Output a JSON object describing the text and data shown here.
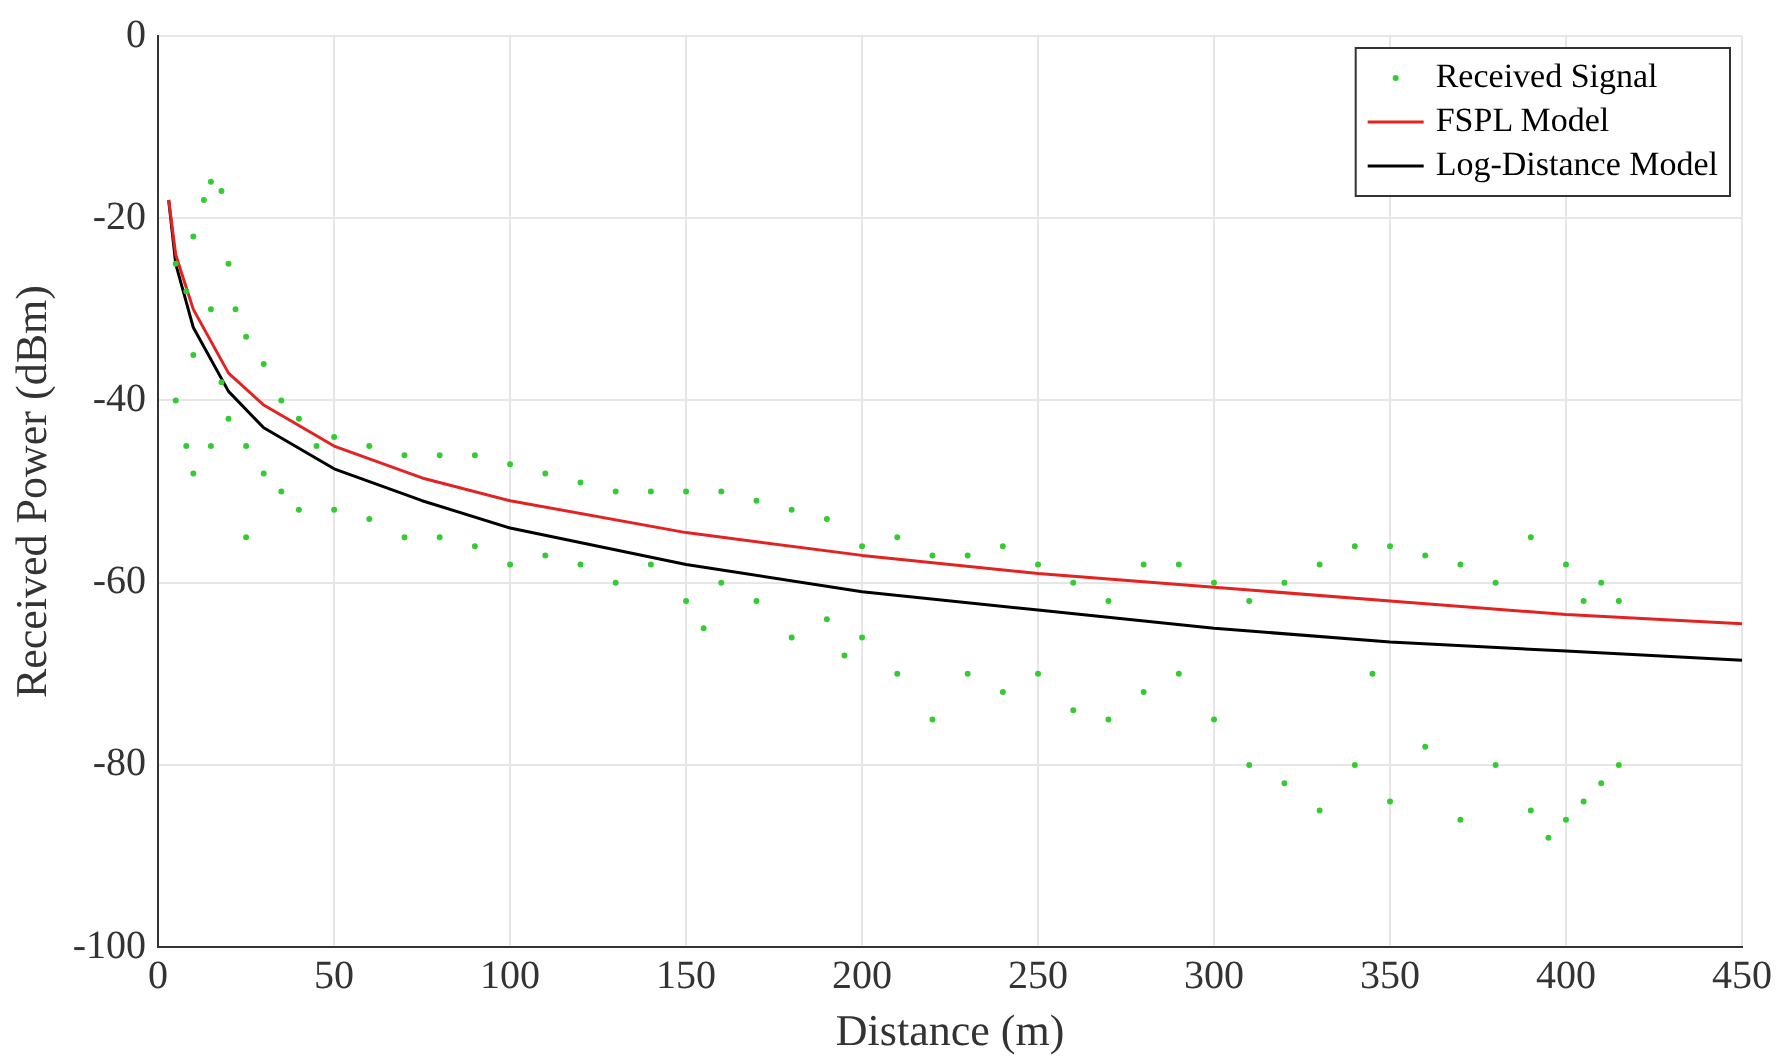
{
  "chart_data": {
    "type": "scatter",
    "xlabel": "Distance (m)",
    "ylabel": "Received Power (dBm)",
    "xlim": [
      0,
      450
    ],
    "xticks": [
      0,
      50,
      100,
      150,
      200,
      250,
      300,
      350,
      400,
      450
    ],
    "ylim": [
      -100,
      0
    ],
    "yticks": [
      -100,
      -80,
      -60,
      -40,
      -20,
      0
    ],
    "grid": true,
    "legend": "top right",
    "series": [
      {
        "name": "Received Signal",
        "marker": "circle",
        "color": "#33cc33",
        "x": [
          5,
          5,
          8,
          8,
          10,
          10,
          10,
          13,
          15,
          15,
          15,
          18,
          18,
          20,
          20,
          22,
          25,
          25,
          25,
          30,
          30,
          35,
          35,
          40,
          40,
          45,
          50,
          50,
          60,
          60,
          70,
          70,
          80,
          80,
          90,
          90,
          100,
          100,
          110,
          110,
          120,
          120,
          130,
          130,
          140,
          140,
          150,
          150,
          155,
          160,
          160,
          170,
          170,
          180,
          180,
          190,
          190,
          195,
          200,
          200,
          210,
          210,
          220,
          220,
          230,
          230,
          240,
          240,
          250,
          250,
          260,
          260,
          270,
          270,
          280,
          280,
          290,
          290,
          300,
          300,
          310,
          310,
          320,
          320,
          330,
          330,
          340,
          340,
          345,
          350,
          350,
          360,
          360,
          370,
          370,
          380,
          380,
          390,
          390,
          395,
          400,
          400,
          405,
          405,
          410,
          410,
          415,
          415
        ],
        "values": [
          -25,
          -40,
          -28,
          -45,
          -22,
          -35,
          -48,
          -18,
          -16,
          -30,
          -45,
          -17,
          -38,
          -25,
          -42,
          -30,
          -33,
          -45,
          -55,
          -36,
          -48,
          -40,
          -50,
          -42,
          -52,
          -45,
          -44,
          -52,
          -45,
          -53,
          -46,
          -55,
          -46,
          -55,
          -46,
          -56,
          -47,
          -58,
          -48,
          -57,
          -49,
          -58,
          -50,
          -60,
          -50,
          -58,
          -50,
          -62,
          -65,
          -50,
          -60,
          -51,
          -62,
          -52,
          -66,
          -53,
          -64,
          -68,
          -56,
          -66,
          -55,
          -70,
          -57,
          -75,
          -57,
          -70,
          -56,
          -72,
          -58,
          -70,
          -60,
          -74,
          -62,
          -75,
          -58,
          -72,
          -58,
          -70,
          -60,
          -75,
          -62,
          -80,
          -60,
          -82,
          -58,
          -85,
          -56,
          -80,
          -70,
          -56,
          -84,
          -57,
          -78,
          -58,
          -86,
          -60,
          -80,
          -55,
          -85,
          -88,
          -58,
          -86,
          -62,
          -84,
          -60,
          -82,
          -62,
          -80
        ]
      },
      {
        "name": "FSPL Model",
        "type": "line",
        "marker": "none",
        "line_style": "solid",
        "color": "#e32222",
        "x": [
          3,
          5,
          10,
          20,
          30,
          50,
          75,
          100,
          150,
          200,
          250,
          300,
          350,
          400,
          450
        ],
        "values": [
          -18,
          -24,
          -30,
          -37,
          -40.5,
          -45,
          -48.5,
          -51,
          -54.5,
          -57,
          -59,
          -60.5,
          -62,
          -63.5,
          -64.5
        ]
      },
      {
        "name": "Log-Distance Model",
        "type": "line",
        "marker": "none",
        "line_style": "solid",
        "color": "#000000",
        "x": [
          3,
          5,
          10,
          20,
          30,
          50,
          75,
          100,
          150,
          200,
          250,
          300,
          350,
          400,
          450
        ],
        "values": [
          -18,
          -25,
          -32,
          -39,
          -43,
          -47.5,
          -51,
          -54,
          -58,
          -61,
          -63,
          -65,
          -66.5,
          -67.5,
          -68.5
        ]
      }
    ]
  }
}
